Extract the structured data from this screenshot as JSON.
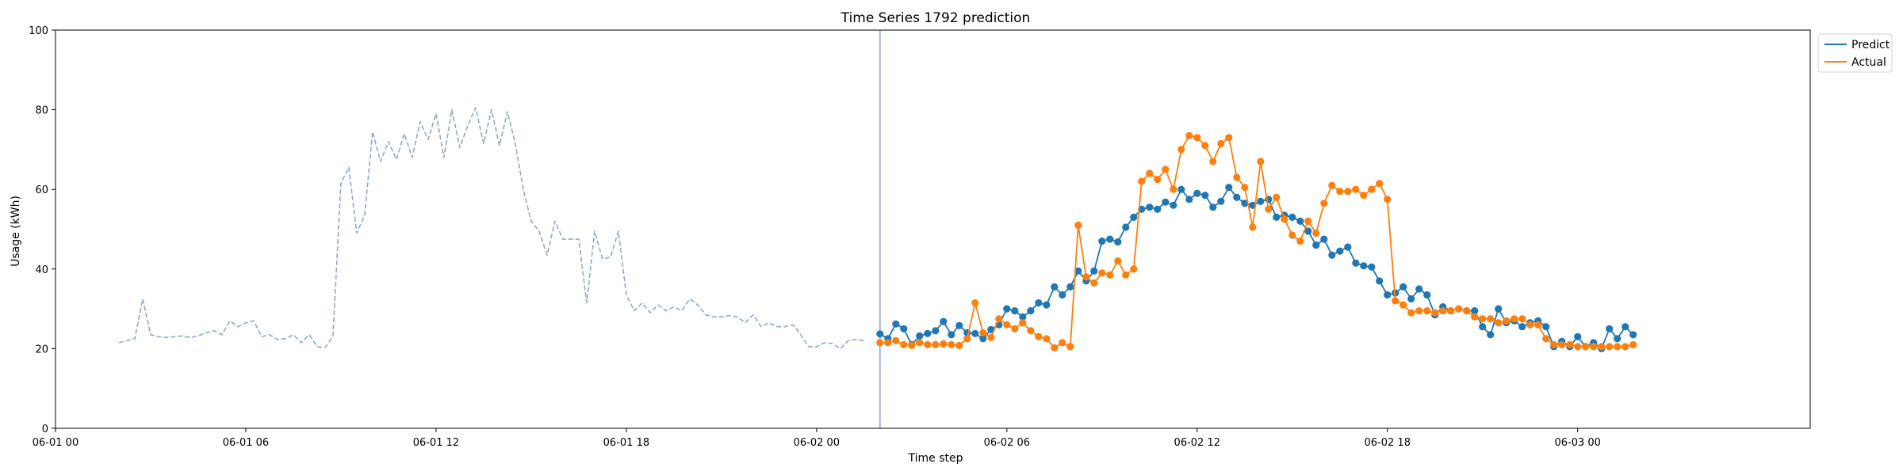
{
  "chart_data": {
    "type": "line",
    "title": "Time Series 1792 prediction",
    "xlabel": "Time step",
    "ylabel": "Usage (kWh)",
    "ylim": [
      0,
      100
    ],
    "yticks": [
      0,
      20,
      40,
      60,
      80,
      100
    ],
    "xlim": [
      "2025-06-01 00:00",
      "2025-06-03 07:20"
    ],
    "xticks": [
      {
        "t": "2025-06-01 00:00",
        "label": "06-01 00"
      },
      {
        "t": "2025-06-01 06:00",
        "label": "06-01 06"
      },
      {
        "t": "2025-06-01 12:00",
        "label": "06-01 12"
      },
      {
        "t": "2025-06-01 18:00",
        "label": "06-01 18"
      },
      {
        "t": "2025-06-02 00:00",
        "label": "06-02 00"
      },
      {
        "t": "2025-06-02 06:00",
        "label": "06-02 06"
      },
      {
        "t": "2025-06-02 12:00",
        "label": "06-02 12"
      },
      {
        "t": "2025-06-02 18:00",
        "label": "06-02 18"
      },
      {
        "t": "2025-06-03 00:00",
        "label": "06-03 00"
      }
    ],
    "split_time": "2025-06-02 02:00",
    "legend_position": "top-right",
    "grid": false,
    "colors": {
      "history": "#8fa8cc",
      "predict": "#1f77b4",
      "actual": "#ff7f0e",
      "split": "#8fa8cc"
    },
    "history": {
      "start": "2025-06-01 02:00",
      "step_minutes": 15,
      "values": [
        21.5,
        22,
        22.5,
        32.5,
        23.5,
        23,
        22.8,
        23,
        23.2,
        22.8,
        23.2,
        24,
        24.5,
        23.5,
        27,
        25.5,
        26.5,
        27,
        23,
        23.5,
        22.3,
        22.5,
        23.5,
        21.5,
        23.5,
        20.5,
        20.3,
        23,
        61.5,
        65.5,
        49,
        53.5,
        74.5,
        67,
        72,
        67.5,
        74,
        68,
        77,
        72.5,
        79,
        68,
        80,
        70.5,
        76,
        80.5,
        71.5,
        80,
        71,
        79.5,
        71.5,
        60,
        52,
        49.5,
        43.5,
        52,
        47.5,
        47.5,
        47.5,
        31.5,
        49.5,
        42.5,
        43,
        49.5,
        33.5,
        29.5,
        31.5,
        29,
        31,
        29.5,
        30.5,
        29.5,
        32.5,
        31,
        28.5,
        28,
        28,
        28.3,
        28,
        26.5,
        28.5,
        25.5,
        26.5,
        25.5,
        25.5,
        26,
        23.5,
        20.5,
        20.5,
        21.5,
        21.3,
        20,
        22,
        22.3,
        22
      ]
    },
    "series": [
      {
        "name": "Predict",
        "start": "2025-06-02 02:00",
        "step_minutes": 15,
        "values": [
          23.7,
          22.5,
          26.2,
          25,
          21,
          23.2,
          23.8,
          24.5,
          26.8,
          23.5,
          25.8,
          24,
          23.8,
          22.5,
          24.8,
          26,
          30,
          29.5,
          28,
          29.5,
          31.5,
          31,
          35.5,
          33.5,
          35.5,
          39.5,
          37,
          39.5,
          47,
          47.5,
          46.8,
          50.5,
          53,
          55,
          55.5,
          55,
          56.8,
          56,
          60,
          57.5,
          59,
          58.5,
          55.5,
          57,
          60.5,
          58,
          56.5,
          56,
          57,
          57.5,
          53,
          53.5,
          53,
          52,
          49.5,
          46,
          47.5,
          43.5,
          44.5,
          45.5,
          41.5,
          40.8,
          40.5,
          37,
          33.5,
          34,
          35.5,
          32.5,
          35,
          33.5,
          28.5,
          30.5,
          29.5,
          30,
          29.5,
          29.5,
          25.5,
          23.5,
          30,
          26.5,
          27,
          25.5,
          26.5,
          27,
          25.5,
          20.5,
          21.8,
          20.5,
          23,
          20.5,
          21.5,
          20,
          25,
          22.5,
          25.5,
          23.5
        ]
      },
      {
        "name": "Actual",
        "start": "2025-06-02 02:00",
        "step_minutes": 15,
        "values": [
          21.5,
          21.5,
          22,
          21,
          20.8,
          21.5,
          21,
          21,
          21.2,
          21,
          20.8,
          22.5,
          31.5,
          24,
          22.8,
          27.5,
          26,
          25,
          26.5,
          24.5,
          23,
          22.5,
          20.2,
          21.5,
          20.5,
          51,
          38,
          36.5,
          39,
          38.5,
          42,
          38.5,
          40,
          62,
          64,
          62.5,
          65,
          60,
          70,
          73.5,
          73,
          71,
          67,
          71.5,
          73,
          63,
          60.5,
          50.5,
          67,
          55,
          58,
          52.5,
          48.5,
          47,
          52,
          49,
          56.5,
          61,
          59.5,
          59.5,
          60,
          58.5,
          60,
          61.5,
          57.5,
          32,
          31,
          29,
          29.5,
          29.5,
          29,
          29.5,
          29.5,
          30,
          29.5,
          28,
          27.5,
          27.5,
          26.5,
          27,
          27.5,
          27.5,
          26,
          26,
          22.5,
          21,
          21,
          21,
          20.5,
          20.5,
          20.5,
          20.5,
          20.5,
          20.5,
          20.5,
          21
        ]
      }
    ]
  }
}
